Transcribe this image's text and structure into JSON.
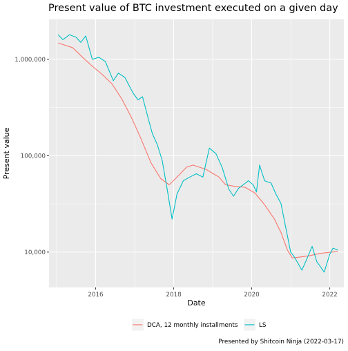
{
  "chart_data": {
    "type": "line",
    "title": "Present value of BTC investment executed on a given day",
    "xlabel": "Date",
    "ylabel": "Present value",
    "caption": "Presented by Shitcoin Ninja (2022-03-17)",
    "x_scale": "date",
    "y_scale": "log10",
    "xlim": [
      "2014-10-22",
      "2022-05-13"
    ],
    "ylim": [
      4300,
      2600000
    ],
    "x_ticks": [
      {
        "date": "2016-01-01",
        "label": "2016"
      },
      {
        "date": "2018-01-01",
        "label": "2018"
      },
      {
        "date": "2020-01-01",
        "label": "2020"
      },
      {
        "date": "2022-01-01",
        "label": "2022"
      }
    ],
    "x_minor_ticks": [
      "2015-01-01",
      "2017-01-01",
      "2019-01-01",
      "2021-01-01"
    ],
    "y_ticks": [
      {
        "value": 10000,
        "label": "10,000"
      },
      {
        "value": 100000,
        "label": "100,000"
      },
      {
        "value": 1000000,
        "label": "1,000,000"
      }
    ],
    "grid": true,
    "legend_position": "bottom",
    "background": "#ebebeb",
    "series": [
      {
        "name": "DCA, 12 monthly installments",
        "color": "#f8766d",
        "points": [
          [
            "2015-01-15",
            1480000
          ],
          [
            "2015-06-01",
            1320000
          ],
          [
            "2015-09-01",
            1050000
          ],
          [
            "2015-11-15",
            880000
          ],
          [
            "2016-03-01",
            700000
          ],
          [
            "2016-06-01",
            560000
          ],
          [
            "2016-09-01",
            390000
          ],
          [
            "2016-12-01",
            250000
          ],
          [
            "2017-03-01",
            150000
          ],
          [
            "2017-06-01",
            85000
          ],
          [
            "2017-09-01",
            58000
          ],
          [
            "2017-11-20",
            50000
          ],
          [
            "2018-02-01",
            60000
          ],
          [
            "2018-05-01",
            76000
          ],
          [
            "2018-07-01",
            80000
          ],
          [
            "2018-11-01",
            72000
          ],
          [
            "2019-03-01",
            60000
          ],
          [
            "2019-05-01",
            50000
          ],
          [
            "2019-08-01",
            48000
          ],
          [
            "2019-11-01",
            47000
          ],
          [
            "2020-02-01",
            41000
          ],
          [
            "2020-05-01",
            31000
          ],
          [
            "2020-08-01",
            22000
          ],
          [
            "2020-10-01",
            16000
          ],
          [
            "2020-12-01",
            10500
          ],
          [
            "2021-01-15",
            8700
          ],
          [
            "2021-04-01",
            8900
          ],
          [
            "2021-07-01",
            9200
          ],
          [
            "2021-10-01",
            9700
          ],
          [
            "2022-01-15",
            10000
          ],
          [
            "2022-03-17",
            10100
          ]
        ]
      },
      {
        "name": "LS",
        "color": "#00bfc4",
        "points": [
          [
            "2015-01-15",
            1800000
          ],
          [
            "2015-03-01",
            1600000
          ],
          [
            "2015-05-01",
            1800000
          ],
          [
            "2015-07-01",
            1700000
          ],
          [
            "2015-08-15",
            1500000
          ],
          [
            "2015-10-01",
            1750000
          ],
          [
            "2015-12-01",
            1000000
          ],
          [
            "2016-02-01",
            1050000
          ],
          [
            "2016-04-01",
            950000
          ],
          [
            "2016-06-15",
            600000
          ],
          [
            "2016-08-01",
            720000
          ],
          [
            "2016-10-01",
            650000
          ],
          [
            "2016-12-15",
            450000
          ],
          [
            "2017-02-01",
            380000
          ],
          [
            "2017-03-15",
            410000
          ],
          [
            "2017-05-01",
            260000
          ],
          [
            "2017-06-15",
            170000
          ],
          [
            "2017-08-01",
            130000
          ],
          [
            "2017-09-15",
            90000
          ],
          [
            "2017-11-01",
            45000
          ],
          [
            "2017-12-17",
            22000
          ],
          [
            "2018-02-01",
            40000
          ],
          [
            "2018-04-01",
            55000
          ],
          [
            "2018-06-01",
            60000
          ],
          [
            "2018-08-01",
            65000
          ],
          [
            "2018-10-01",
            60000
          ],
          [
            "2018-12-01",
            120000
          ],
          [
            "2019-02-01",
            105000
          ],
          [
            "2019-04-01",
            75000
          ],
          [
            "2019-06-01",
            45000
          ],
          [
            "2019-07-15",
            38000
          ],
          [
            "2019-09-01",
            46000
          ],
          [
            "2019-10-15",
            50000
          ],
          [
            "2019-12-01",
            55000
          ],
          [
            "2020-01-15",
            50000
          ],
          [
            "2020-02-15",
            42000
          ],
          [
            "2020-03-15",
            80000
          ],
          [
            "2020-05-01",
            55000
          ],
          [
            "2020-07-01",
            52000
          ],
          [
            "2020-08-15",
            40000
          ],
          [
            "2020-10-01",
            32000
          ],
          [
            "2020-11-15",
            18000
          ],
          [
            "2020-12-31",
            10000
          ],
          [
            "2021-02-01",
            9000
          ],
          [
            "2021-04-15",
            6500
          ],
          [
            "2021-06-01",
            8500
          ],
          [
            "2021-07-20",
            11500
          ],
          [
            "2021-09-01",
            8000
          ],
          [
            "2021-11-10",
            6200
          ],
          [
            "2022-01-01",
            9500
          ],
          [
            "2022-02-01",
            11000
          ],
          [
            "2022-03-17",
            10500
          ]
        ]
      }
    ]
  }
}
